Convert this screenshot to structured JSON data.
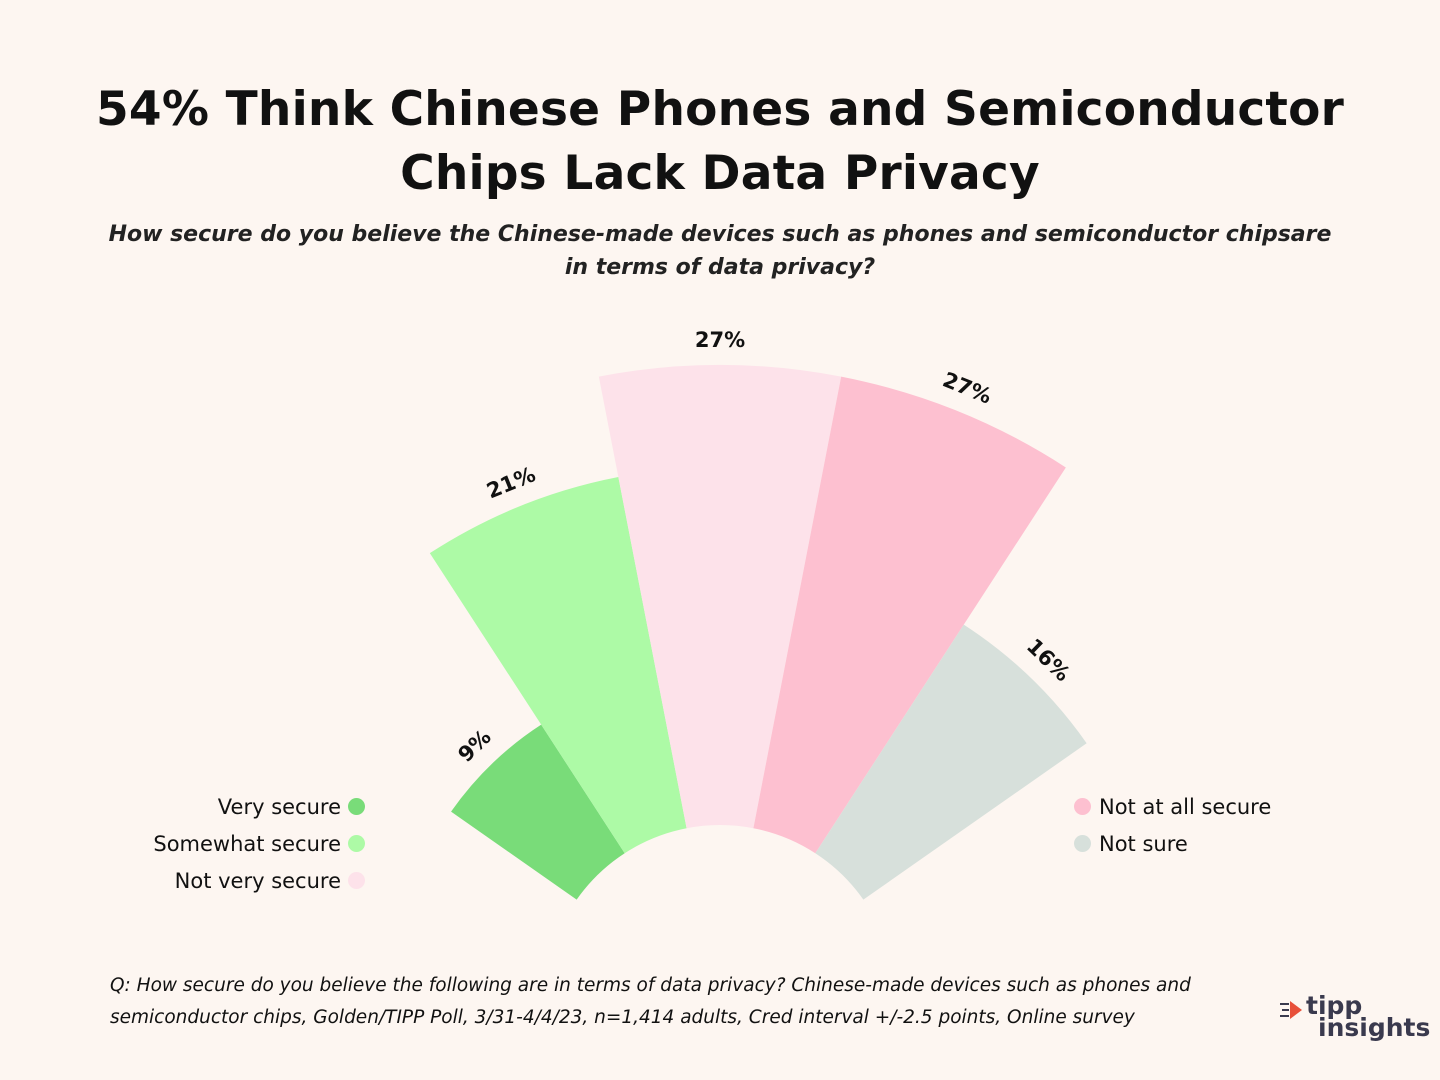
{
  "title": {
    "line1": "54% Think Chinese Phones and Semiconductor",
    "line2": "Chips Lack Data Privacy"
  },
  "subtitle": "How secure do you believe the Chinese-made devices such as phones and semiconductor chipsare in terms of data privacy?",
  "chart_data": {
    "type": "pie",
    "variant": "radial-bar (nightingale half-rose)",
    "categories": [
      "Very secure",
      "Somewhat secure",
      "Not very secure",
      "Not at all secure",
      "Not sure"
    ],
    "values": [
      9,
      21,
      27,
      27,
      16
    ],
    "labels": [
      "9%",
      "21%",
      "27%",
      "27%",
      "16%"
    ],
    "colors": [
      "#79dc79",
      "#adfaa6",
      "#fde2ea",
      "#fdc0d0",
      "#d7e0db"
    ],
    "title": "54% Think Chinese Phones and Semiconductor Chips Lack Data Privacy",
    "legend_placement": "split left / right"
  },
  "legend": {
    "left": [
      {
        "label": "Very secure",
        "color": "#79dc79"
      },
      {
        "label": "Somewhat secure",
        "color": "#adfaa6"
      },
      {
        "label": "Not very secure",
        "color": "#fde2ea"
      }
    ],
    "right": [
      {
        "label": "Not at all secure",
        "color": "#fdc0d0"
      },
      {
        "label": "Not sure",
        "color": "#d7e0db"
      }
    ]
  },
  "footnote": {
    "line1": "Q: How secure do you believe the following are in terms of data privacy? Chinese-made devices such as phones and",
    "line2": "semiconductor chips, Golden/TIPP Poll, 3/31-4/4/23, n=1,414 adults, Cred interval +/-2.5 points, Online survey"
  },
  "logo": {
    "line1": "tipp",
    "line2": "insights",
    "accent": "#e8503a"
  }
}
